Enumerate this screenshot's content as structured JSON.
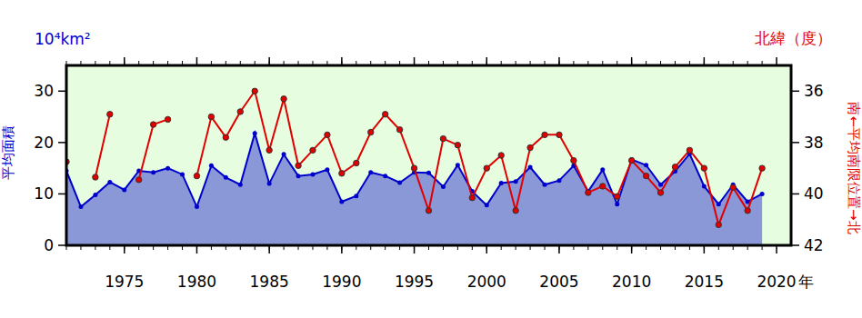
{
  "chart_data": {
    "type": "line",
    "y_unit": "10⁴km²",
    "y_label": "平均面積",
    "y2_unit": "北緯（度）",
    "y2_label": "南←平均南限位置→北",
    "x_label": "年",
    "x": [
      1971,
      1972,
      1973,
      1974,
      1975,
      1976,
      1977,
      1978,
      1979,
      1980,
      1981,
      1982,
      1983,
      1984,
      1985,
      1986,
      1987,
      1988,
      1989,
      1990,
      1991,
      1992,
      1993,
      1994,
      1995,
      1996,
      1997,
      1998,
      1999,
      2000,
      2001,
      2002,
      2003,
      2004,
      2005,
      2006,
      2007,
      2008,
      2009,
      2010,
      2011,
      2012,
      2013,
      2014,
      2015,
      2016,
      2017,
      2018,
      2019
    ],
    "xlim": [
      1971,
      2021
    ],
    "xticks": [
      1975,
      1980,
      1985,
      1990,
      1995,
      2000,
      2005,
      2010,
      2015,
      2020
    ],
    "ylim": [
      0,
      35
    ],
    "yticks": [
      0,
      10,
      20,
      30
    ],
    "y2lim": [
      42,
      35
    ],
    "y2ticks": [
      36,
      38,
      40,
      42
    ],
    "grid": false,
    "series": [
      {
        "type": "area",
        "color": "#0000cc",
        "marker": "circle",
        "values": [
          14.5,
          7.5,
          9.8,
          12.3,
          10.8,
          14.5,
          14.2,
          15.0,
          13.8,
          7.5,
          15.5,
          13.2,
          11.8,
          21.8,
          12.0,
          17.7,
          13.5,
          13.8,
          14.7,
          8.5,
          9.6,
          14.2,
          13.5,
          12.2,
          14.2,
          14.1,
          11.4,
          15.6,
          10.5,
          7.8,
          12.1,
          12.4,
          15.2,
          11.8,
          12.6,
          15.5,
          10.5,
          14.7,
          8.0,
          16.7,
          15.6,
          11.8,
          14.4,
          17.8,
          11.5,
          8.0,
          11.8,
          8.5,
          10.0
        ]
      },
      {
        "type": "line",
        "axis": "y2",
        "color": "#e00000",
        "marker": "circle",
        "values": [
          38.75,
          null,
          39.35,
          36.9,
          null,
          39.45,
          37.3,
          37.1,
          null,
          39.3,
          37.0,
          37.8,
          36.8,
          36.0,
          38.3,
          36.3,
          38.9,
          38.3,
          37.7,
          39.2,
          38.8,
          37.6,
          36.9,
          37.5,
          39.0,
          40.65,
          37.85,
          38.1,
          40.15,
          39.0,
          38.5,
          40.65,
          38.2,
          37.7,
          37.7,
          38.7,
          39.95,
          39.7,
          40.1,
          38.7,
          39.3,
          39.95,
          38.95,
          38.3,
          39.0,
          41.2,
          39.75,
          40.65,
          39.0
        ]
      }
    ]
  }
}
